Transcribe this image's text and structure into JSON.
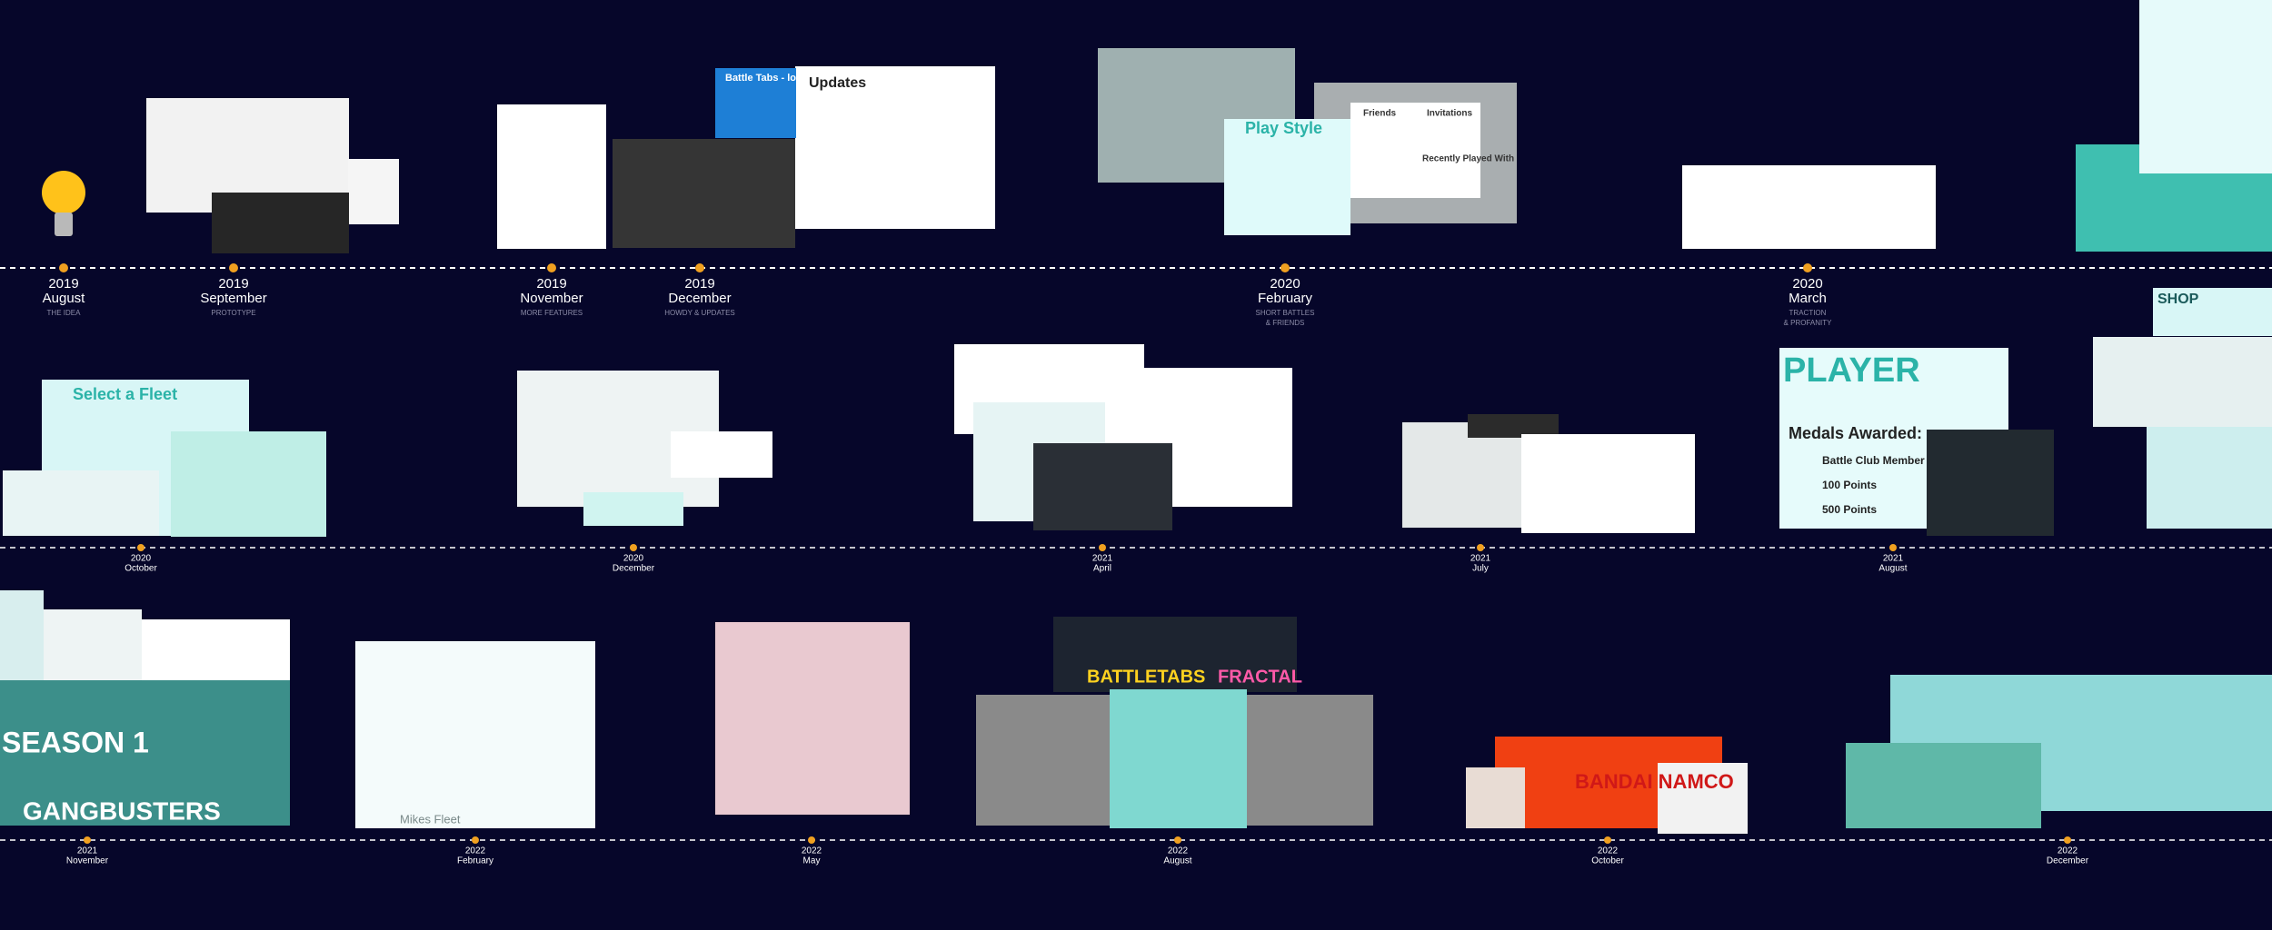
{
  "rows": [
    {
      "milestones": [
        {
          "year": "2019",
          "month": "August",
          "note": [
            "THE IDEA"
          ]
        },
        {
          "year": "2019",
          "month": "September",
          "note": [
            "PROTOTYPE"
          ]
        },
        {
          "year": "2019",
          "month": "November",
          "note": [
            "MORE FEATURES"
          ]
        },
        {
          "year": "2019",
          "month": "December",
          "note": [
            "HOWDY & UPDATES"
          ]
        },
        {
          "year": "2020",
          "month": "February",
          "note": [
            "SHORT BATTLES",
            "& FRIENDS"
          ]
        },
        {
          "year": "2020",
          "month": "March",
          "note": [
            "TRACTION",
            "& PROFANITY"
          ]
        }
      ]
    },
    {
      "milestones": [
        {
          "year": "2020",
          "month": "October"
        },
        {
          "year": "2020",
          "month": "December"
        },
        {
          "year": "2021",
          "month": "April"
        },
        {
          "year": "2021",
          "month": "July"
        },
        {
          "year": "2021",
          "month": "August"
        }
      ]
    },
    {
      "milestones": [
        {
          "year": "2021",
          "month": "November"
        },
        {
          "year": "2022",
          "month": "February"
        },
        {
          "year": "2022",
          "month": "May"
        },
        {
          "year": "2022",
          "month": "August"
        },
        {
          "year": "2022",
          "month": "October"
        },
        {
          "year": "2022",
          "month": "December"
        }
      ]
    }
  ],
  "screens": [
    "Updates",
    "Battle Tabs - local",
    "Play Style",
    "Friends",
    "Invitations",
    "Recently Played With",
    "Select a Fleet",
    "PLAYER",
    "Medals Awarded:",
    "Battle Club Member",
    "100 Points",
    "500 Points",
    "SHOP",
    "SEASON 1",
    "GANGBUSTERS",
    "Mikes Fleet",
    "BATTLETABS",
    "FRACTAL",
    "BANDAI NAMCO"
  ]
}
